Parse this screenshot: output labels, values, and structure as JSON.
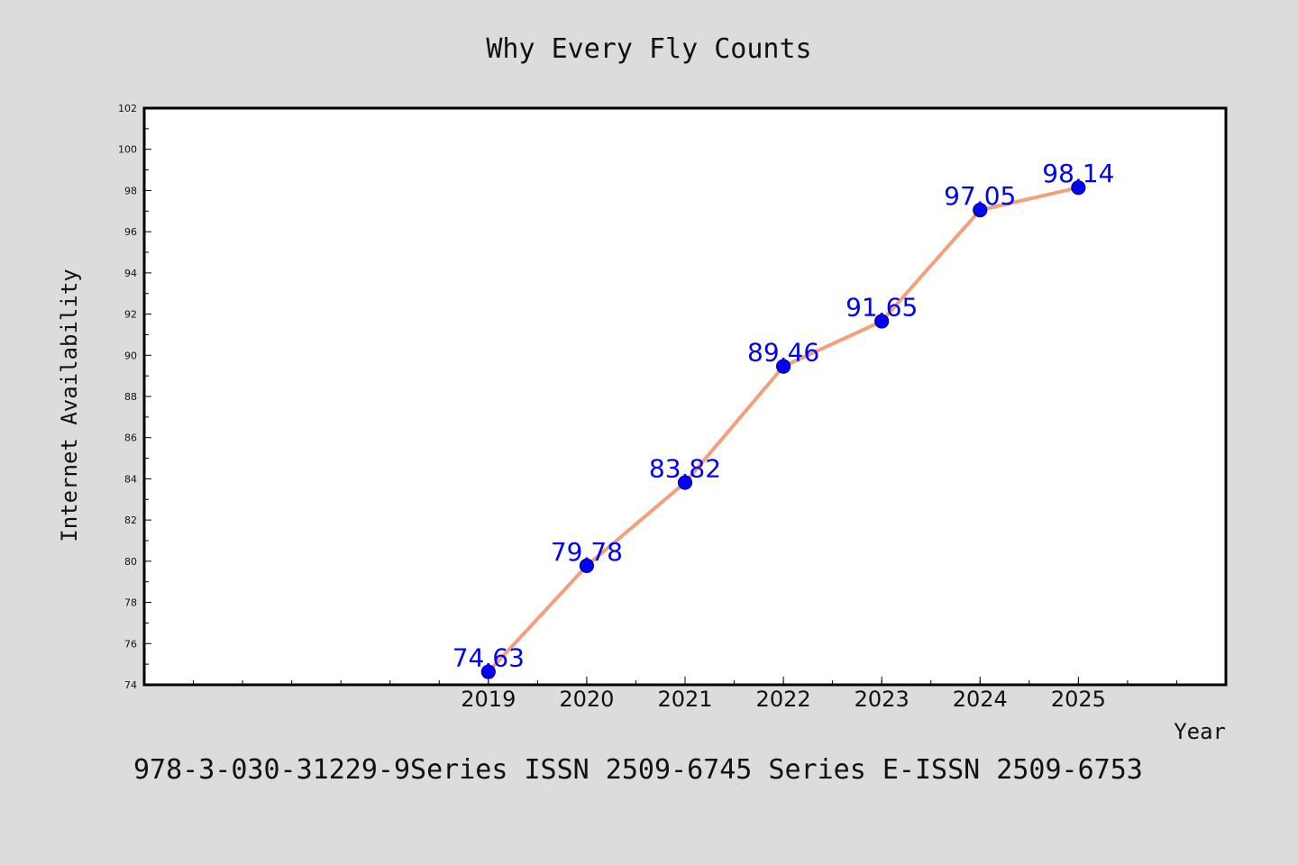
{
  "chart_data": {
    "type": "line",
    "title": "Why Every Fly Counts",
    "xlabel": "Year",
    "ylabel": "Internet Availability",
    "x": [
      2019,
      2020,
      2021,
      2022,
      2023,
      2024,
      2025
    ],
    "x_tick_labels": [
      "2019",
      "2020",
      "2021",
      "2022",
      "2023",
      "2024",
      "2025"
    ],
    "values": [
      74.63,
      79.78,
      83.82,
      89.46,
      91.65,
      97.05,
      98.14
    ],
    "data_labels": [
      "74.63",
      "79.78",
      "83.82",
      "89.46",
      "91.65",
      "97.05",
      "98.14"
    ],
    "xlim": [
      2015.5,
      2026.5
    ],
    "ylim": [
      74,
      102
    ],
    "y_ticks": [
      74,
      76,
      78,
      80,
      82,
      84,
      86,
      88,
      90,
      92,
      94,
      96,
      98,
      100,
      102
    ],
    "grid": false,
    "colors": {
      "line": "#f4a07a",
      "marker": "#0000ff",
      "marker_edge": "#000080",
      "data_label": "#0000ff",
      "background": "#dcdcdc",
      "plot_area": "#ffffff"
    }
  },
  "footer": {
    "text": "978-3-030-31229-9Series ISSN 2509-6745 Series E-ISSN 2509-6753"
  }
}
